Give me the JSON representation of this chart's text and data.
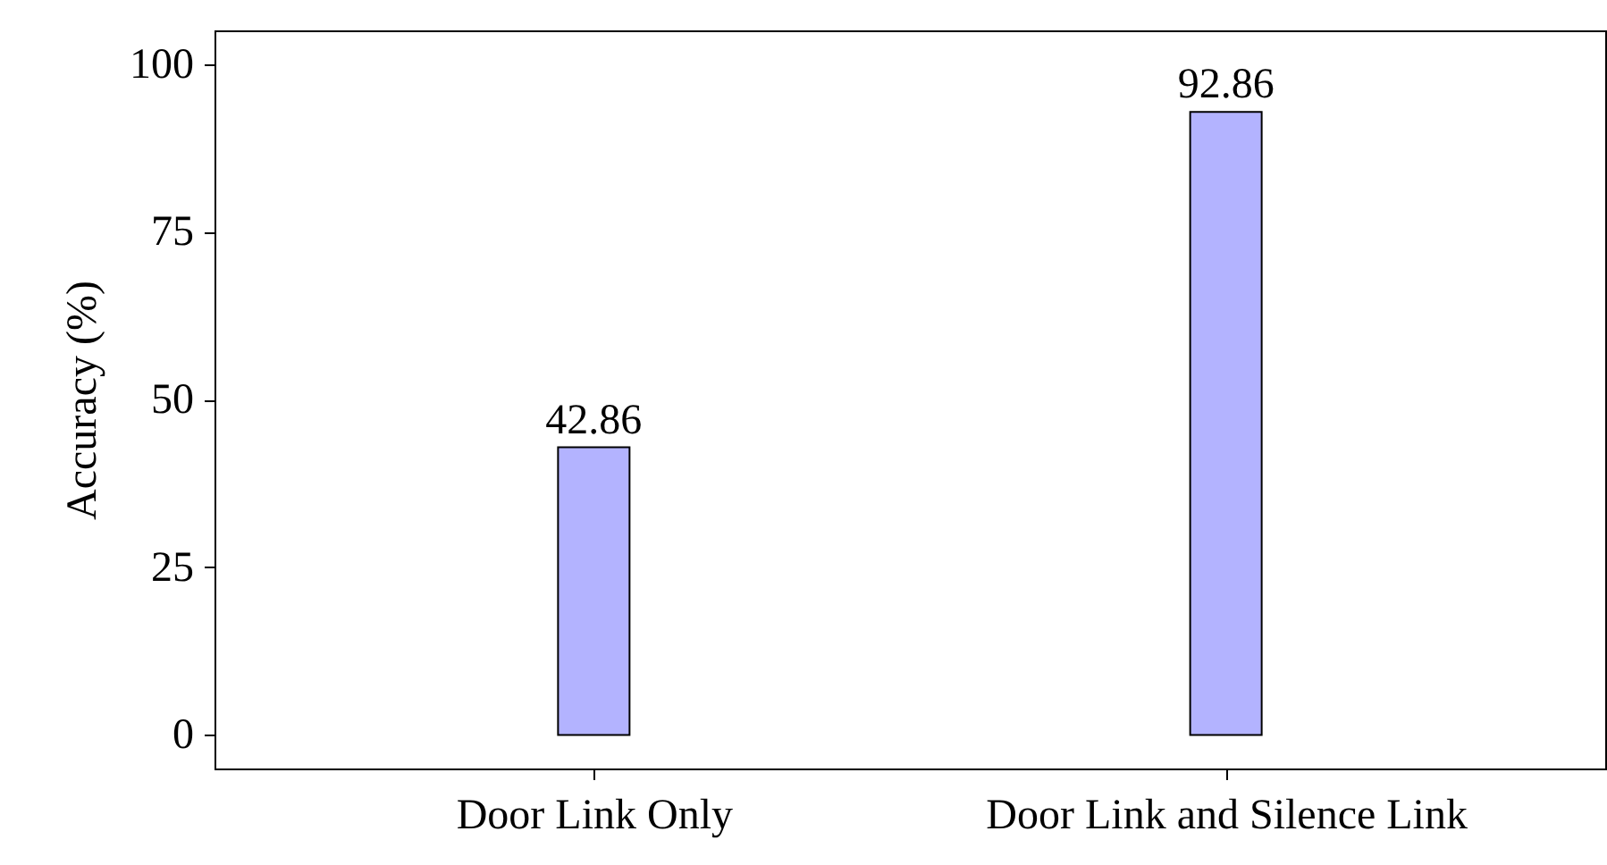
{
  "chart_data": {
    "type": "bar",
    "ylabel": "Accuracy (%)",
    "categories": [
      "Door Link Only",
      "Door Link and Silence Link"
    ],
    "values": [
      42.86,
      92.86
    ],
    "color": "#b3b3ff",
    "ylim": [
      -5,
      105
    ],
    "yticks": [
      0,
      25,
      50,
      75,
      100
    ],
    "grid": false,
    "data_labels": true
  }
}
